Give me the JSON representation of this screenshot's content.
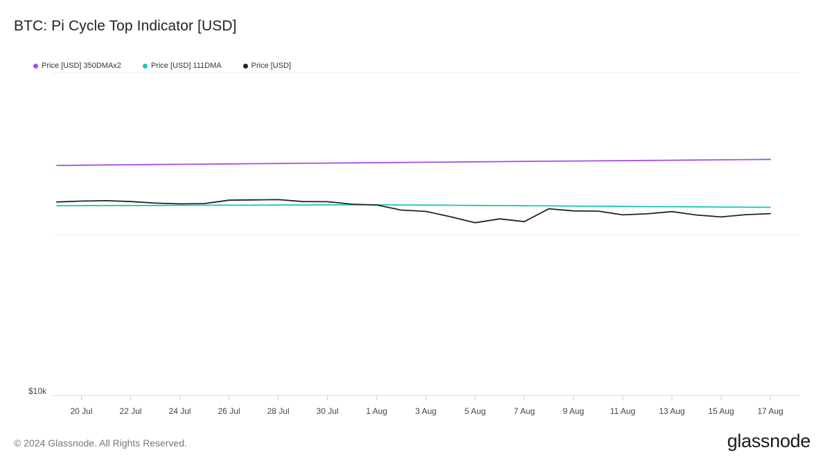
{
  "header": {
    "title": "BTC: Pi Cycle Top Indicator [USD]"
  },
  "footer": {
    "copyright": "© 2024 Glassnode. All Rights Reserved.",
    "brand": "glassnode"
  },
  "chart_data": {
    "type": "line",
    "title": "BTC: Pi Cycle Top Indicator [USD]",
    "xlabel": "",
    "ylabel": "",
    "y_scale": "log",
    "y_ticks": [
      {
        "value": 10000,
        "label": "$10k"
      }
    ],
    "ylim": [
      10000,
      238000
    ],
    "grid": true,
    "legend_position": "top-left",
    "x_tick_labels": [
      "20 Jul",
      "22 Jul",
      "24 Jul",
      "26 Jul",
      "28 Jul",
      "30 Jul",
      "1 Aug",
      "3 Aug",
      "5 Aug",
      "7 Aug",
      "9 Aug",
      "11 Aug",
      "13 Aug",
      "15 Aug",
      "17 Aug"
    ],
    "x_tick_dates": [
      "2024-07-20",
      "2024-07-22",
      "2024-07-24",
      "2024-07-26",
      "2024-07-28",
      "2024-07-30",
      "2024-08-01",
      "2024-08-03",
      "2024-08-05",
      "2024-08-07",
      "2024-08-09",
      "2024-08-11",
      "2024-08-13",
      "2024-08-15",
      "2024-08-17"
    ],
    "xlim": [
      "2024-07-19",
      "2024-08-18"
    ],
    "x": [
      "2024-07-19",
      "2024-07-20",
      "2024-07-21",
      "2024-07-22",
      "2024-07-23",
      "2024-07-24",
      "2024-07-25",
      "2024-07-26",
      "2024-07-27",
      "2024-07-28",
      "2024-07-29",
      "2024-07-30",
      "2024-07-31",
      "2024-08-01",
      "2024-08-02",
      "2024-08-03",
      "2024-08-04",
      "2024-08-05",
      "2024-08-06",
      "2024-08-07",
      "2024-08-08",
      "2024-08-09",
      "2024-08-10",
      "2024-08-11",
      "2024-08-12",
      "2024-08-13",
      "2024-08-14",
      "2024-08-15",
      "2024-08-16",
      "2024-08-17"
    ],
    "series": [
      {
        "name": "Price [USD] 350DMAx2",
        "color": "#a64ce8",
        "values": [
          95500,
          95700,
          95900,
          96100,
          96300,
          96500,
          96700,
          96900,
          97100,
          97300,
          97500,
          97700,
          97900,
          98100,
          98300,
          98500,
          98700,
          98900,
          99100,
          99300,
          99500,
          99700,
          99900,
          100100,
          100300,
          100500,
          100700,
          100900,
          101100,
          101300
        ]
      },
      {
        "name": "Price [USD] 111DMA",
        "color": "#14c8b4",
        "values": [
          64200,
          64250,
          64300,
          64350,
          64400,
          64450,
          64500,
          64550,
          64600,
          64650,
          64700,
          64750,
          64800,
          64800,
          64700,
          64600,
          64500,
          64400,
          64300,
          64200,
          64100,
          64000,
          63900,
          63800,
          63700,
          63600,
          63500,
          63400,
          63300,
          63200
        ]
      },
      {
        "name": "Price [USD]",
        "color": "#222222",
        "values": [
          66600,
          67200,
          67500,
          66900,
          65900,
          65400,
          65600,
          67800,
          68000,
          68200,
          66900,
          66800,
          65200,
          64700,
          61500,
          60700,
          57600,
          54300,
          56400,
          54900,
          62300,
          61000,
          60900,
          58700,
          59300,
          60600,
          58600,
          57500,
          58800,
          59400
        ]
      }
    ]
  }
}
